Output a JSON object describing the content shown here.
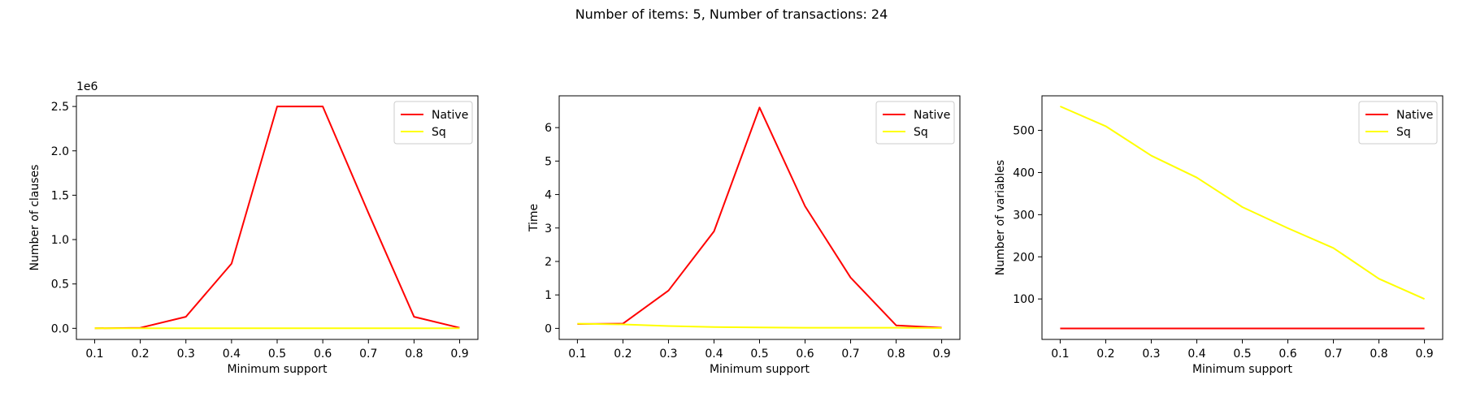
{
  "suptitle": "Number of items: 5, Number of transactions: 24",
  "colors": {
    "native": "#ff0000",
    "sq": "#ffff00"
  },
  "chart_data": [
    {
      "type": "line",
      "title": "",
      "xlabel": "Minimum support",
      "ylabel": "Number of clauses",
      "y_offset_text": "1e6",
      "x": [
        0.1,
        0.2,
        0.3,
        0.4,
        0.5,
        0.6,
        0.7,
        0.8,
        0.9
      ],
      "xticks": [
        "0.1",
        "0.2",
        "0.3",
        "0.4",
        "0.5",
        "0.6",
        "0.7",
        "0.8",
        "0.9"
      ],
      "xlim": [
        0.06,
        0.94
      ],
      "yticks": [
        0.0,
        0.5,
        1.0,
        1.5,
        2.0,
        2.5
      ],
      "ytick_labels": [
        "0.0",
        "0.5",
        "1.0",
        "1.5",
        "2.0",
        "2.5"
      ],
      "ylim": [
        -0.125,
        2.62
      ],
      "legend": "top-right",
      "series": [
        {
          "name": "Native",
          "color": "#ff0000",
          "values": [
            0.0,
            0.006,
            0.13,
            0.73,
            2.5,
            2.5,
            1.3,
            0.13,
            0.006
          ]
        },
        {
          "name": "Sq",
          "color": "#ffff00",
          "values": [
            0.0,
            0.0,
            0.0,
            0.0,
            0.0,
            0.0,
            0.0,
            0.0,
            0.0
          ]
        }
      ]
    },
    {
      "type": "line",
      "title": "",
      "xlabel": "Minimum support",
      "ylabel": "Time",
      "x": [
        0.1,
        0.2,
        0.3,
        0.4,
        0.5,
        0.6,
        0.7,
        0.8,
        0.9
      ],
      "xticks": [
        "0.1",
        "0.2",
        "0.3",
        "0.4",
        "0.5",
        "0.6",
        "0.7",
        "0.8",
        "0.9"
      ],
      "xlim": [
        0.06,
        0.94
      ],
      "yticks": [
        0,
        1,
        2,
        3,
        4,
        5,
        6
      ],
      "ytick_labels": [
        "0",
        "1",
        "2",
        "3",
        "4",
        "5",
        "6"
      ],
      "ylim": [
        -0.33,
        6.95
      ],
      "legend": "top-right",
      "series": [
        {
          "name": "Native",
          "color": "#ff0000",
          "values": [
            0.13,
            0.14,
            1.13,
            2.9,
            6.6,
            3.65,
            1.52,
            0.09,
            0.02
          ]
        },
        {
          "name": "Sq",
          "color": "#ffff00",
          "values": [
            0.14,
            0.12,
            0.07,
            0.04,
            0.03,
            0.02,
            0.02,
            0.02,
            0.01
          ]
        }
      ]
    },
    {
      "type": "line",
      "title": "",
      "xlabel": "Minimum support",
      "ylabel": "Number of variables",
      "x": [
        0.1,
        0.2,
        0.3,
        0.4,
        0.5,
        0.6,
        0.7,
        0.8,
        0.9
      ],
      "xticks": [
        "0.1",
        "0.2",
        "0.3",
        "0.4",
        "0.5",
        "0.6",
        "0.7",
        "0.8",
        "0.9"
      ],
      "xlim": [
        0.06,
        0.94
      ],
      "yticks": [
        100,
        200,
        300,
        400,
        500
      ],
      "ytick_labels": [
        "100",
        "200",
        "300",
        "400",
        "500"
      ],
      "ylim": [
        4,
        582
      ],
      "legend": "top-right",
      "series": [
        {
          "name": "Native",
          "color": "#ff0000",
          "values": [
            30,
            30,
            30,
            30,
            30,
            30,
            30,
            30,
            30
          ]
        },
        {
          "name": "Sq",
          "color": "#ffff00",
          "values": [
            557,
            510,
            440,
            388,
            318,
            268,
            221,
            148,
            100
          ]
        }
      ]
    }
  ]
}
